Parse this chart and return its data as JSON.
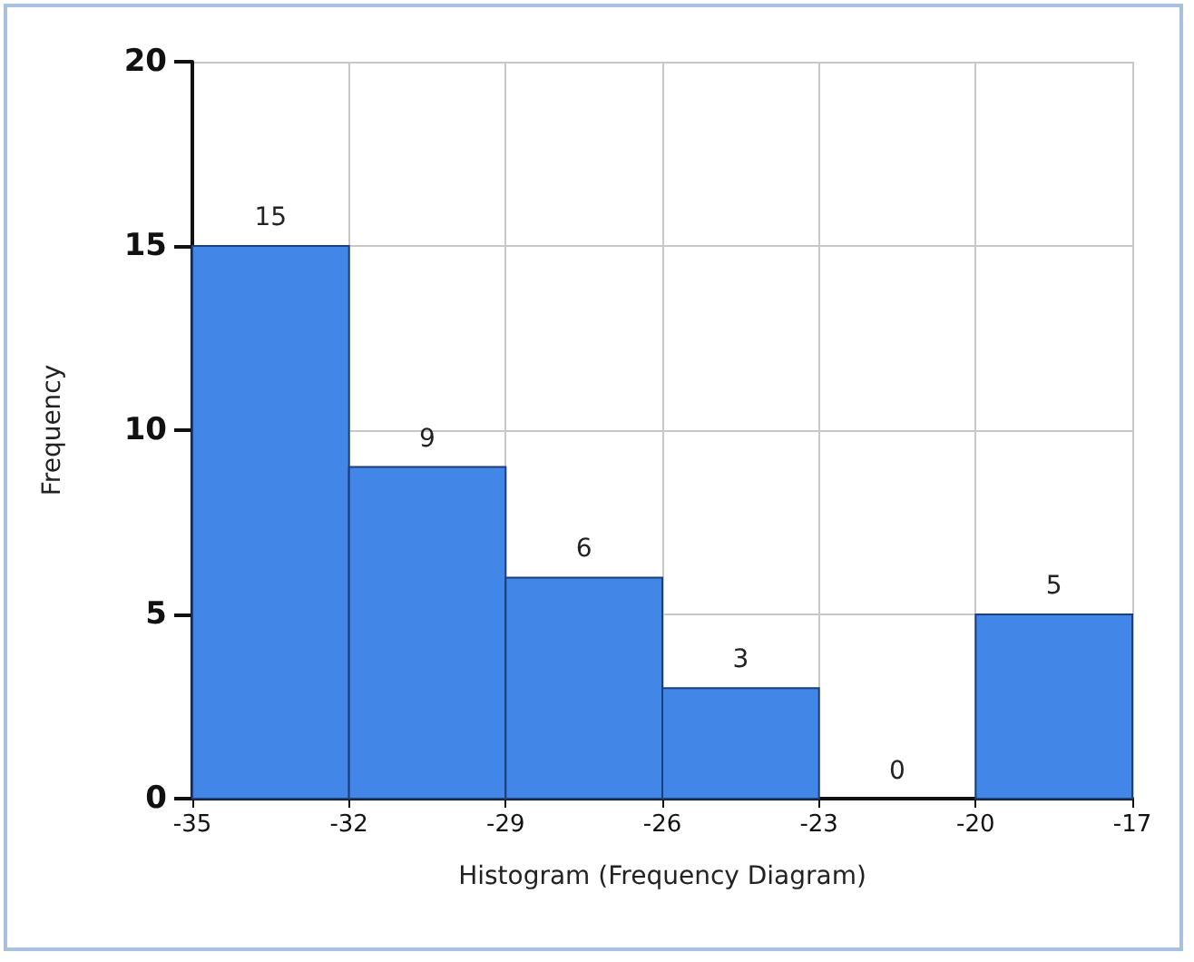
{
  "chart_data": {
    "type": "histogram",
    "xlabel": "Histogram (Frequency Diagram)",
    "ylabel": "Frequency",
    "bins": [
      -35,
      -32,
      -29,
      -26,
      -23,
      -20,
      -17
    ],
    "values": [
      15,
      9,
      6,
      3,
      0,
      5
    ],
    "color": "#4287e8",
    "data_labels": true,
    "xlim": [
      -35,
      -17
    ],
    "xticks": [
      -35,
      -32,
      -29,
      -26,
      -23,
      -20,
      -17
    ],
    "ylim": [
      0,
      20
    ],
    "yticks": [
      0,
      5,
      10,
      15,
      20
    ],
    "grid": true
  }
}
